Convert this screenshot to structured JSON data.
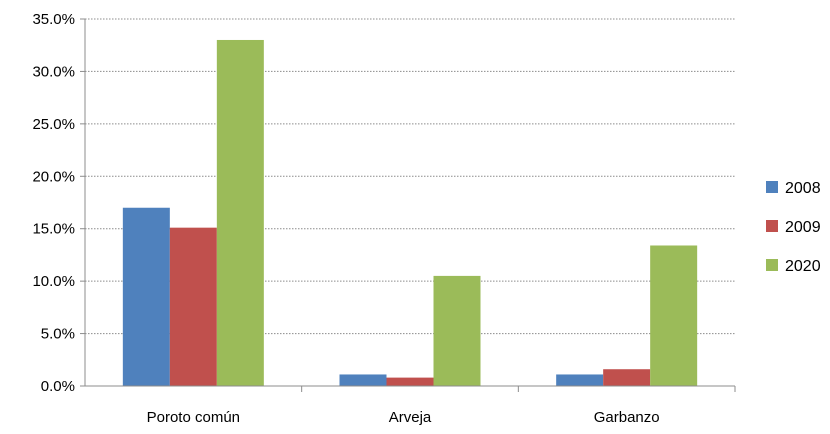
{
  "chart_data": {
    "type": "bar",
    "title": "",
    "xlabel": "",
    "ylabel": "",
    "categories": [
      "Poroto común",
      "Arveja",
      "Garbanzo"
    ],
    "series": [
      {
        "name": "2008",
        "color": "#4f81bd",
        "values": [
          17.0,
          1.1,
          1.1
        ]
      },
      {
        "name": "2009",
        "color": "#c0504d",
        "values": [
          15.1,
          0.8,
          1.6
        ]
      },
      {
        "name": "2020",
        "color": "#9bbb59",
        "values": [
          33.0,
          10.5,
          13.4
        ]
      }
    ],
    "ylim": [
      0,
      35
    ],
    "yticks": [
      "0.0%",
      "5.0%",
      "10.0%",
      "15.0%",
      "20.0%",
      "25.0%",
      "30.0%",
      "35.0%"
    ],
    "grid": true,
    "legend_position": "right"
  }
}
